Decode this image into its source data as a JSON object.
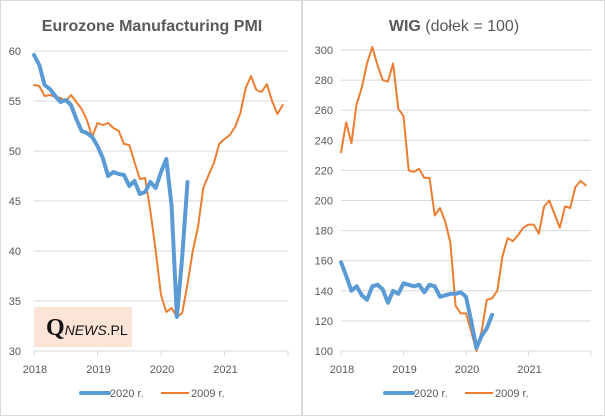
{
  "chart_data": [
    {
      "type": "line",
      "title": "Eurozone Manufacturing PMI",
      "title_bold": "Eurozone Manufacturing PMI",
      "title_normal": "",
      "xlabel": "",
      "ylabel": "",
      "x_ticks": [
        "2018",
        "2019",
        "2020",
        "2021"
      ],
      "x_range_years": [
        2018,
        2022
      ],
      "y_ticks": [
        "60",
        "55",
        "50",
        "45",
        "40",
        "35",
        "30"
      ],
      "ylim": [
        30,
        60
      ],
      "grid": true,
      "legend_position": "bottom",
      "x_start": "2018-01",
      "x_step": "monthly",
      "series": [
        {
          "name": "2020 r.",
          "color": "#5b9bd5",
          "values": [
            59.6,
            58.6,
            56.6,
            56.2,
            55.5,
            54.9,
            55.1,
            54.6,
            53.2,
            52.0,
            51.8,
            51.4,
            50.5,
            49.3,
            47.5,
            47.9,
            47.7,
            47.6,
            46.5,
            47.0,
            45.7,
            45.9,
            46.9,
            46.3,
            47.9,
            49.2,
            44.5,
            33.4,
            39.4,
            46.9
          ]
        },
        {
          "name": "2009 r.",
          "color": "#ed7d31",
          "values": [
            56.6,
            56.5,
            55.5,
            55.6,
            55.4,
            55.3,
            55.0,
            55.6,
            54.9,
            54.2,
            53.1,
            51.4,
            52.8,
            52.6,
            52.8,
            52.3,
            52.0,
            50.7,
            50.6,
            48.9,
            47.2,
            47.3,
            44.0,
            40.0,
            35.6,
            33.9,
            34.3,
            33.4,
            33.8,
            36.7,
            40.0,
            42.4,
            46.3,
            47.6,
            48.8,
            50.7,
            51.2,
            51.6,
            52.4,
            53.8,
            56.3,
            57.5,
            56.1,
            55.9,
            56.7,
            55.0,
            53.7,
            54.6
          ]
        }
      ]
    },
    {
      "type": "line",
      "title": "WIG (dołek = 100)",
      "title_bold": "WIG",
      "title_normal": " (dołek = 100)",
      "xlabel": "",
      "ylabel": "",
      "x_ticks": [
        "2018",
        "2019",
        "2020",
        "2021"
      ],
      "x_range_years": [
        2018,
        2022
      ],
      "y_ticks": [
        "300",
        "280",
        "260",
        "240",
        "220",
        "200",
        "180",
        "160",
        "140",
        "120",
        "100"
      ],
      "ylim": [
        100,
        300
      ],
      "grid": true,
      "legend_position": "bottom",
      "x_start": "2018-01",
      "x_step": "monthly",
      "series": [
        {
          "name": "2020 r.",
          "color": "#5b9bd5",
          "values": [
            159,
            150,
            140,
            143,
            137,
            134,
            143,
            144,
            141,
            132,
            140,
            138,
            145,
            144,
            143,
            144,
            139,
            144,
            143,
            136,
            137,
            138,
            138,
            139,
            136,
            120,
            102,
            110,
            115,
            124
          ]
        },
        {
          "name": "2009 r.",
          "color": "#ed7d31",
          "values": [
            232,
            252,
            238,
            264,
            275,
            291,
            302,
            290,
            280,
            279,
            291,
            261,
            256,
            220,
            219,
            221,
            215,
            215,
            190,
            195,
            186,
            172,
            130,
            125,
            125,
            113,
            100,
            113,
            134,
            135,
            140,
            163,
            175,
            173,
            177,
            182,
            184,
            184,
            178,
            196,
            200,
            191,
            182,
            196,
            195,
            209,
            213,
            210
          ]
        }
      ]
    }
  ],
  "logo": {
    "q": "Q",
    "news": "NEWS",
    "pl": ".PL",
    "background": "#fce4d6"
  },
  "legend": {
    "series_2020": "2020 r.",
    "series_2009": "2009 r."
  }
}
